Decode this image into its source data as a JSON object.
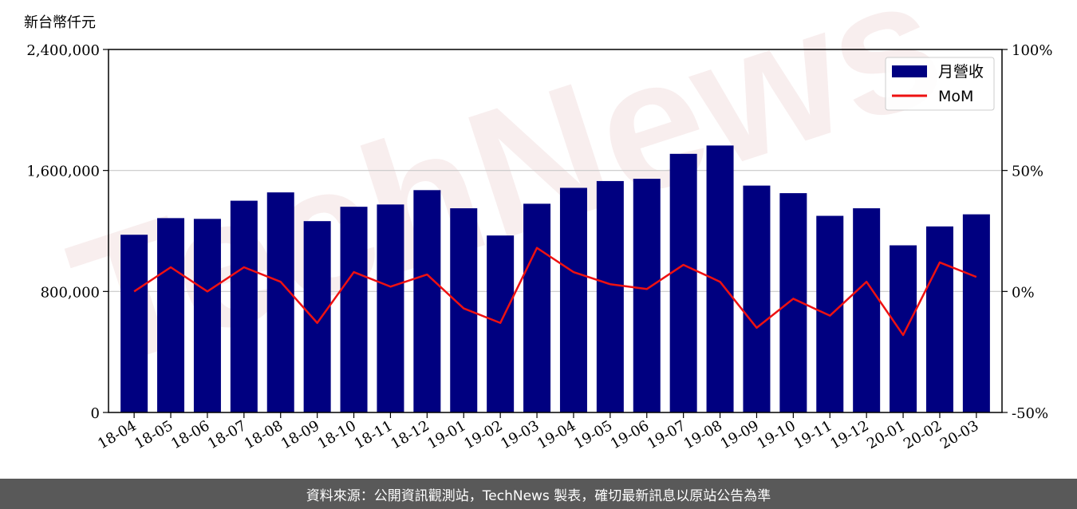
{
  "chart_data": {
    "type": "bar",
    "ylabel": "新台幣仟元",
    "categories": [
      "18-04",
      "18-05",
      "18-06",
      "18-07",
      "18-08",
      "18-09",
      "18-10",
      "18-11",
      "18-12",
      "19-01",
      "19-02",
      "19-03",
      "19-04",
      "19-05",
      "19-06",
      "19-07",
      "19-08",
      "19-09",
      "19-10",
      "19-11",
      "19-12",
      "20-01",
      "20-02",
      "20-03"
    ],
    "series": [
      {
        "name": "月營收",
        "type": "bar",
        "axis": "left",
        "color": "#000080",
        "values": [
          1175000,
          1285000,
          1280000,
          1400000,
          1455000,
          1265000,
          1360000,
          1375000,
          1470000,
          1350000,
          1170000,
          1380000,
          1485000,
          1530000,
          1545000,
          1710000,
          1765000,
          1500000,
          1450000,
          1300000,
          1350000,
          1105000,
          1230000,
          1310000
        ]
      },
      {
        "name": "MoM",
        "type": "line",
        "axis": "right",
        "color": "#ee1111",
        "values": [
          0,
          10,
          0,
          10,
          4,
          -13,
          8,
          2,
          7,
          -7,
          -13,
          18,
          8,
          3,
          1,
          11,
          4,
          -15,
          -3,
          -10,
          4,
          -18,
          12,
          6
        ]
      }
    ],
    "ylim_left": [
      0,
      2400000
    ],
    "yticks_left": [
      "0",
      "800,000",
      "1,600,000",
      "2,400,000"
    ],
    "ylim_right": [
      -50,
      100
    ],
    "yticks_right": [
      "-50%",
      "0%",
      "50%",
      "100%"
    ],
    "grid": "horizontal",
    "legend_position": "top-right"
  },
  "watermark": "TechNews",
  "footer": {
    "text": "資料來源：公開資訊觀測站，TechNews 製表，確切最新訊息以原站公告為準"
  }
}
